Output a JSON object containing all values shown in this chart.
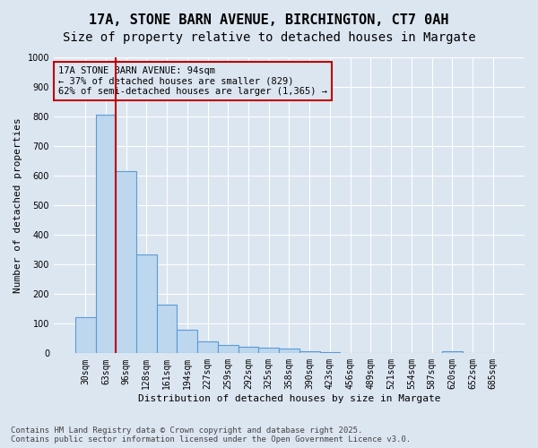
{
  "title_line1": "17A, STONE BARN AVENUE, BIRCHINGTON, CT7 0AH",
  "title_line2": "Size of property relative to detached houses in Margate",
  "xlabel": "Distribution of detached houses by size in Margate",
  "ylabel": "Number of detached properties",
  "bar_values": [
    122,
    805,
    617,
    335,
    165,
    80,
    40,
    27,
    22,
    20,
    15,
    7,
    5,
    0,
    0,
    0,
    0,
    0,
    6,
    0,
    0
  ],
  "categories": [
    "30sqm",
    "63sqm",
    "96sqm",
    "128sqm",
    "161sqm",
    "194sqm",
    "227sqm",
    "259sqm",
    "292sqm",
    "325sqm",
    "358sqm",
    "390sqm",
    "423sqm",
    "456sqm",
    "489sqm",
    "521sqm",
    "554sqm",
    "587sqm",
    "620sqm",
    "652sqm",
    "685sqm"
  ],
  "bar_color": "#bdd7ee",
  "bar_edge_color": "#5b9bd5",
  "plot_bg_color": "#dce6f1",
  "vline_x": 1.5,
  "vline_color": "#c00000",
  "annotation_text": "17A STONE BARN AVENUE: 94sqm\n← 37% of detached houses are smaller (829)\n62% of semi-detached houses are larger (1,365) →",
  "annotation_box_color": "#c00000",
  "ylim": [
    0,
    1000
  ],
  "yticks": [
    0,
    100,
    200,
    300,
    400,
    500,
    600,
    700,
    800,
    900,
    1000
  ],
  "footer_line1": "Contains HM Land Registry data © Crown copyright and database right 2025.",
  "footer_line2": "Contains public sector information licensed under the Open Government Licence v3.0.",
  "title_fontsize": 11,
  "subtitle_fontsize": 10,
  "axis_label_fontsize": 8,
  "tick_fontsize": 7,
  "annotation_fontsize": 7.5,
  "footer_fontsize": 6.5
}
